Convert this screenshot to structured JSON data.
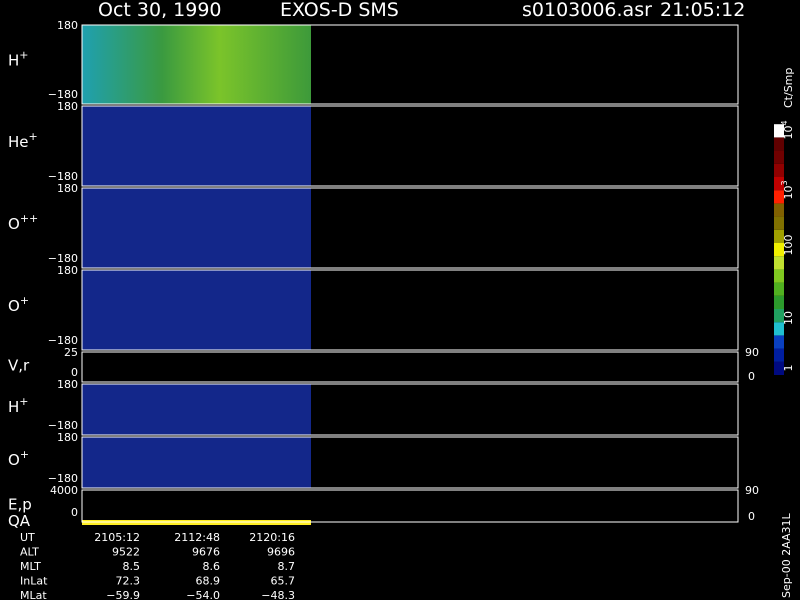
{
  "header": {
    "date": "Oct 30, 1990",
    "instrument": "EXOS-D SMS",
    "file": "s0103006.asr",
    "time": "21:05:12"
  },
  "panels": [
    {
      "ion": "H",
      "charge": "+",
      "top": "180",
      "bottom": "−180"
    },
    {
      "ion": "He",
      "charge": "+",
      "top": "180",
      "bottom": "−180"
    },
    {
      "ion": "O",
      "charge": "++",
      "top": "180",
      "bottom": "−180"
    },
    {
      "ion": "O",
      "charge": "+",
      "top": "180",
      "bottom": "−180"
    },
    {
      "ion": "V,r",
      "top": "25",
      "bottom": "0",
      "right_top": "90",
      "right_bottom": "0"
    },
    {
      "ion": "H",
      "charge": "+",
      "top": "180",
      "bottom": "−180"
    },
    {
      "ion": "O",
      "charge": "+",
      "top": "180",
      "bottom": "−180"
    },
    {
      "ion": "E,p",
      "ion2": "QA",
      "top": "4000",
      "bottom": "0",
      "right_top": "90",
      "right_bottom": "0"
    }
  ],
  "colorbar": {
    "unit": "Ct/Smp",
    "ticks": [
      {
        "base": "1"
      },
      {
        "base": "10"
      },
      {
        "base": "100"
      },
      {
        "base": "10",
        "exp": "3"
      },
      {
        "base": "10",
        "exp": "4"
      }
    ]
  },
  "footer": {
    "rows": [
      [
        "UT",
        "2105:12",
        "2112:48",
        "2120:16"
      ],
      [
        "ALT",
        "9522",
        "9676",
        "9696"
      ],
      [
        "MLT",
        "8.5",
        "8.6",
        "8.7"
      ],
      [
        "InLat",
        "72.3",
        "68.9",
        "65.7"
      ],
      [
        "MLat",
        "−59.9",
        "−54.0",
        "−48.3"
      ]
    ]
  },
  "stamp": "Sep-00 2AA31L"
}
